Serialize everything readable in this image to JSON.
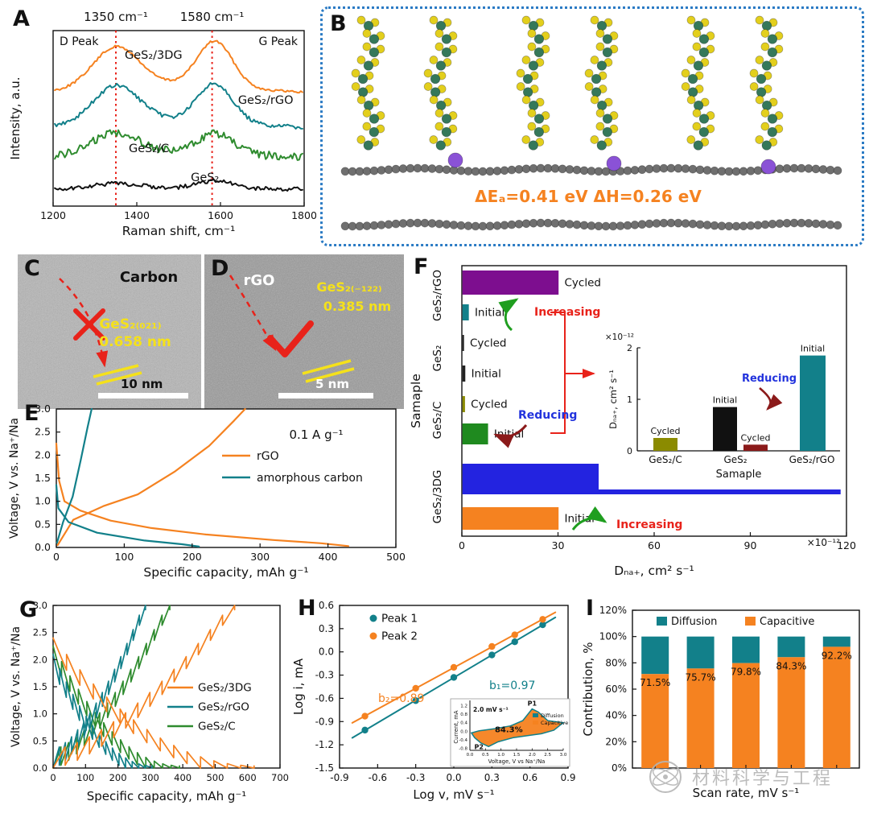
{
  "watermark": {
    "text": "材料科学与工程"
  },
  "panels": {
    "A": {
      "label": "A",
      "freq_labels": [
        "1350 cm⁻¹",
        "1580 cm⁻¹"
      ],
      "d_peak": "D Peak",
      "g_peak": "G Peak"
    },
    "B": {
      "label": "B",
      "energy_text": "ΔEₐ=0.41 eV  ΔH=0.26 eV"
    },
    "C": {
      "label": "C",
      "material": "Carbon",
      "plane": "GeS₂₍₀₂₁₎",
      "spacing": "0.658 nm",
      "scalebar": "10 nm"
    },
    "D": {
      "label": "D",
      "material": "rGO",
      "plane": "GeS₂₍₋₁₂₂₎",
      "spacing": "0.385 nm",
      "scalebar": "5 nm"
    },
    "E": {
      "label": "E"
    },
    "F": {
      "label": "F"
    },
    "G": {
      "label": "G"
    },
    "H": {
      "label": "H"
    },
    "I": {
      "label": "I"
    }
  },
  "chart_data": [
    {
      "id": "raman",
      "type": "line",
      "xlabel": "Raman shift, cm⁻¹",
      "ylabel": "Intensity, a.u.",
      "xlim": [
        1200,
        1800
      ],
      "xticks": [
        1200,
        1400,
        1600,
        1800
      ],
      "peak_positions": [
        1350,
        1580
      ],
      "series": [
        {
          "name": "GeS₂/3DG",
          "color": "#f58220",
          "base": 0.6,
          "d_amp": 50,
          "g_amp": 56,
          "noise": 1.5
        },
        {
          "name": "GeS₂/rGO",
          "color": "#12808a",
          "base": 0.4,
          "d_amp": 46,
          "g_amp": 48,
          "noise": 2.5
        },
        {
          "name": "GeS₂/C",
          "color": "#2e8b2e",
          "base": 0.235,
          "d_amp": 27,
          "g_amp": 25,
          "noise": 5
        },
        {
          "name": "GeS₂",
          "color": "#111111",
          "base": 0.05,
          "d_amp": 6,
          "g_amp": 9,
          "noise": 2.5
        }
      ]
    },
    {
      "id": "halfcell",
      "type": "line",
      "xlabel": "Specific capacity, mAh g⁻¹",
      "ylabel": "Voltage, V vs. Na⁺/Na",
      "xlim": [
        0,
        500
      ],
      "ylim": [
        0,
        3
      ],
      "xticks": [
        0,
        100,
        200,
        300,
        400,
        500
      ],
      "yticks": [
        0,
        0.5,
        1,
        1.5,
        2,
        2.5,
        3
      ],
      "annotation": "0.1 A g⁻¹",
      "series": [
        {
          "name": "rGO",
          "color": "#f58220",
          "discharge": [
            [
              0,
              2.25
            ],
            [
              4,
              1.45
            ],
            [
              12,
              1.0
            ],
            [
              35,
              0.8
            ],
            [
              80,
              0.58
            ],
            [
              140,
              0.42
            ],
            [
              220,
              0.28
            ],
            [
              320,
              0.16
            ],
            [
              390,
              0.09
            ],
            [
              430,
              0.03
            ]
          ],
          "charge": [
            [
              2,
              0.05
            ],
            [
              25,
              0.6
            ],
            [
              70,
              0.9
            ],
            [
              120,
              1.15
            ],
            [
              175,
              1.65
            ],
            [
              225,
              2.2
            ],
            [
              262,
              2.75
            ],
            [
              278,
              3.0
            ]
          ]
        },
        {
          "name": "amorphous carbon",
          "color": "#12808a",
          "discharge": [
            [
              0,
              1.35
            ],
            [
              3,
              0.85
            ],
            [
              18,
              0.55
            ],
            [
              60,
              0.32
            ],
            [
              130,
              0.15
            ],
            [
              185,
              0.07
            ],
            [
              210,
              0.02
            ]
          ],
          "charge": [
            [
              1,
              0.1
            ],
            [
              10,
              0.55
            ],
            [
              24,
              1.1
            ],
            [
              36,
              1.9
            ],
            [
              46,
              2.6
            ],
            [
              52,
              3.0
            ]
          ]
        }
      ]
    },
    {
      "id": "diffusivity",
      "type": "bar-h",
      "xlabel": "Dₙₐ₊, cm² s⁻¹",
      "ylabel": "Samaple",
      "xlim": [
        0,
        120
      ],
      "xticks": [
        0,
        30,
        60,
        90,
        120
      ],
      "scale_note": "×10⁻¹²",
      "groups": [
        "GeS₂/rGO",
        "GeS₂",
        "GeS₂/C",
        "GeS₂/3DG"
      ],
      "bars": [
        {
          "group": "GeS₂/rGO",
          "state": "Cycled",
          "value": 30,
          "color": "#7d0e8f"
        },
        {
          "group": "GeS₂/rGO",
          "state": "Initial",
          "value": 2,
          "color": "#12808a"
        },
        {
          "group": "GeS₂",
          "state": "Cycled",
          "value": 0.5,
          "color": "#222222"
        },
        {
          "group": "GeS₂",
          "state": "Initial",
          "value": 0.9,
          "color": "#222222"
        },
        {
          "group": "GeS₂/C",
          "state": "Cycled",
          "value": 0.8,
          "color": "#8b8b00"
        },
        {
          "group": "GeS₂/C",
          "state": "Initial",
          "value": 8,
          "color": "#1f8a1f"
        },
        {
          "group": "GeS₂/3DG",
          "state": "Cycled",
          "value": 118,
          "color": "#2323e0"
        },
        {
          "group": "GeS₂/3DG",
          "state": "Initial",
          "value": 30,
          "color": "#f58220"
        }
      ],
      "annotations": {
        "increasing_top": "Increasing",
        "reducing": "Reducing",
        "increasing_bottom": "Increasing"
      }
    },
    {
      "id": "diffusivity-inset",
      "type": "bar",
      "xlabel": "Samaple",
      "ylabel": "Dₙₐ₊, cm² s⁻¹",
      "ylim": [
        0,
        2
      ],
      "yticks": [
        0,
        1,
        2
      ],
      "scale_note": "×10⁻¹²",
      "annotation": "Reducing",
      "categories": [
        "GeS₂/C",
        "GeS₂",
        "GeS₂/rGO"
      ],
      "bars": [
        {
          "category": "GeS₂/C",
          "state": "Cycled",
          "value": 0.25,
          "color": "#8b8b00"
        },
        {
          "category": "GeS₂",
          "state": "Initial",
          "value": 0.85,
          "color": "#111111"
        },
        {
          "category": "GeS₂",
          "state": "Cycled",
          "value": 0.12,
          "color": "#8b1a1a"
        },
        {
          "category": "GeS₂/rGO",
          "state": "Initial",
          "value": 1.85,
          "color": "#12808a"
        }
      ]
    },
    {
      "id": "gitt",
      "type": "line",
      "xlabel": "Specific capacity, mAh g⁻¹",
      "ylabel": "Voltage, V vs. Na⁺/Na",
      "xlim": [
        0,
        700
      ],
      "ylim": [
        0,
        3
      ],
      "xticks": [
        0,
        100,
        200,
        300,
        400,
        500,
        600,
        700
      ],
      "yticks": [
        0,
        0.5,
        1,
        1.5,
        2,
        2.5,
        3
      ],
      "series": [
        {
          "name": "GeS₂/3DG",
          "color": "#f58220",
          "charge_capacity": 560,
          "discharge_capacity": 620,
          "start_voltage": 2.4
        },
        {
          "name": "GeS₂/rGO",
          "color": "#12808a",
          "charge_capacity": 285,
          "discharge_capacity": 305,
          "start_voltage": 2.1
        },
        {
          "name": "GeS₂/C",
          "color": "#2e8b2e",
          "charge_capacity": 360,
          "discharge_capacity": 390,
          "start_voltage": 2.25
        }
      ]
    },
    {
      "id": "bvalue",
      "type": "scatter",
      "xlabel": "Log v, mV s⁻¹",
      "ylabel": "Log i, mA",
      "xlim": [
        -0.9,
        0.9
      ],
      "ylim": [
        -1.5,
        0.6
      ],
      "xticks": [
        -0.9,
        -0.6,
        -0.3,
        0.0,
        0.3,
        0.6,
        0.9
      ],
      "yticks": [
        -1.5,
        -1.2,
        -0.9,
        -0.6,
        -0.3,
        0.0,
        0.3,
        0.6
      ],
      "series": [
        {
          "name": "Peak 1",
          "color": "#12808a",
          "slope_label": "b₁=0.97",
          "points": [
            [
              -0.7,
              -1.01
            ],
            [
              -0.3,
              -0.63
            ],
            [
              0,
              -0.33
            ],
            [
              0.3,
              -0.04
            ],
            [
              0.48,
              0.13
            ],
            [
              0.7,
              0.35
            ]
          ]
        },
        {
          "name": "Peak 2",
          "color": "#f58220",
          "slope_label": "b₂=0.89",
          "points": [
            [
              -0.7,
              -0.83
            ],
            [
              -0.3,
              -0.47
            ],
            [
              0,
              -0.2
            ],
            [
              0.3,
              0.07
            ],
            [
              0.48,
              0.22
            ],
            [
              0.7,
              0.42
            ]
          ]
        }
      ]
    },
    {
      "id": "cv-inset",
      "type": "area",
      "scan_rate": "2.0 mV s⁻¹",
      "peak1": "P1",
      "peak2": "P2",
      "capacitive_pct": "84.3%",
      "legend": [
        "Diffusion",
        "Capacitive"
      ],
      "xlabel": "Voltage, V vs Na⁺/Na",
      "ylabel": "Current, mA",
      "xticks": [
        0.0,
        0.5,
        1.0,
        1.5,
        2.0,
        2.5,
        3.0
      ],
      "yticks": [
        1.2,
        0.8,
        0.4,
        0.0,
        -0.4,
        -0.8
      ],
      "colors": {
        "diffusion": "#12808a",
        "capacitive": "#f58220"
      }
    },
    {
      "id": "contribution",
      "type": "stacked-bar",
      "xlabel": "Scan rate, mV s⁻¹",
      "ylabel": "Contribution, %",
      "ylim": [
        0,
        120
      ],
      "ytick_labels": [
        "0%",
        "20%",
        "40%",
        "60%",
        "80%",
        "100%",
        "120%"
      ],
      "legend": [
        {
          "name": "Diffusion",
          "color": "#12808a"
        },
        {
          "name": "Capacitive",
          "color": "#f58220"
        }
      ],
      "bars": [
        {
          "capacitive": 71.5,
          "label": "71.5%"
        },
        {
          "capacitive": 75.7,
          "label": "75.7%"
        },
        {
          "capacitive": 79.8,
          "label": "79.8%"
        },
        {
          "capacitive": 84.3,
          "label": "84.3%"
        },
        {
          "capacitive": 92.2,
          "label": "92.2%"
        }
      ]
    }
  ]
}
